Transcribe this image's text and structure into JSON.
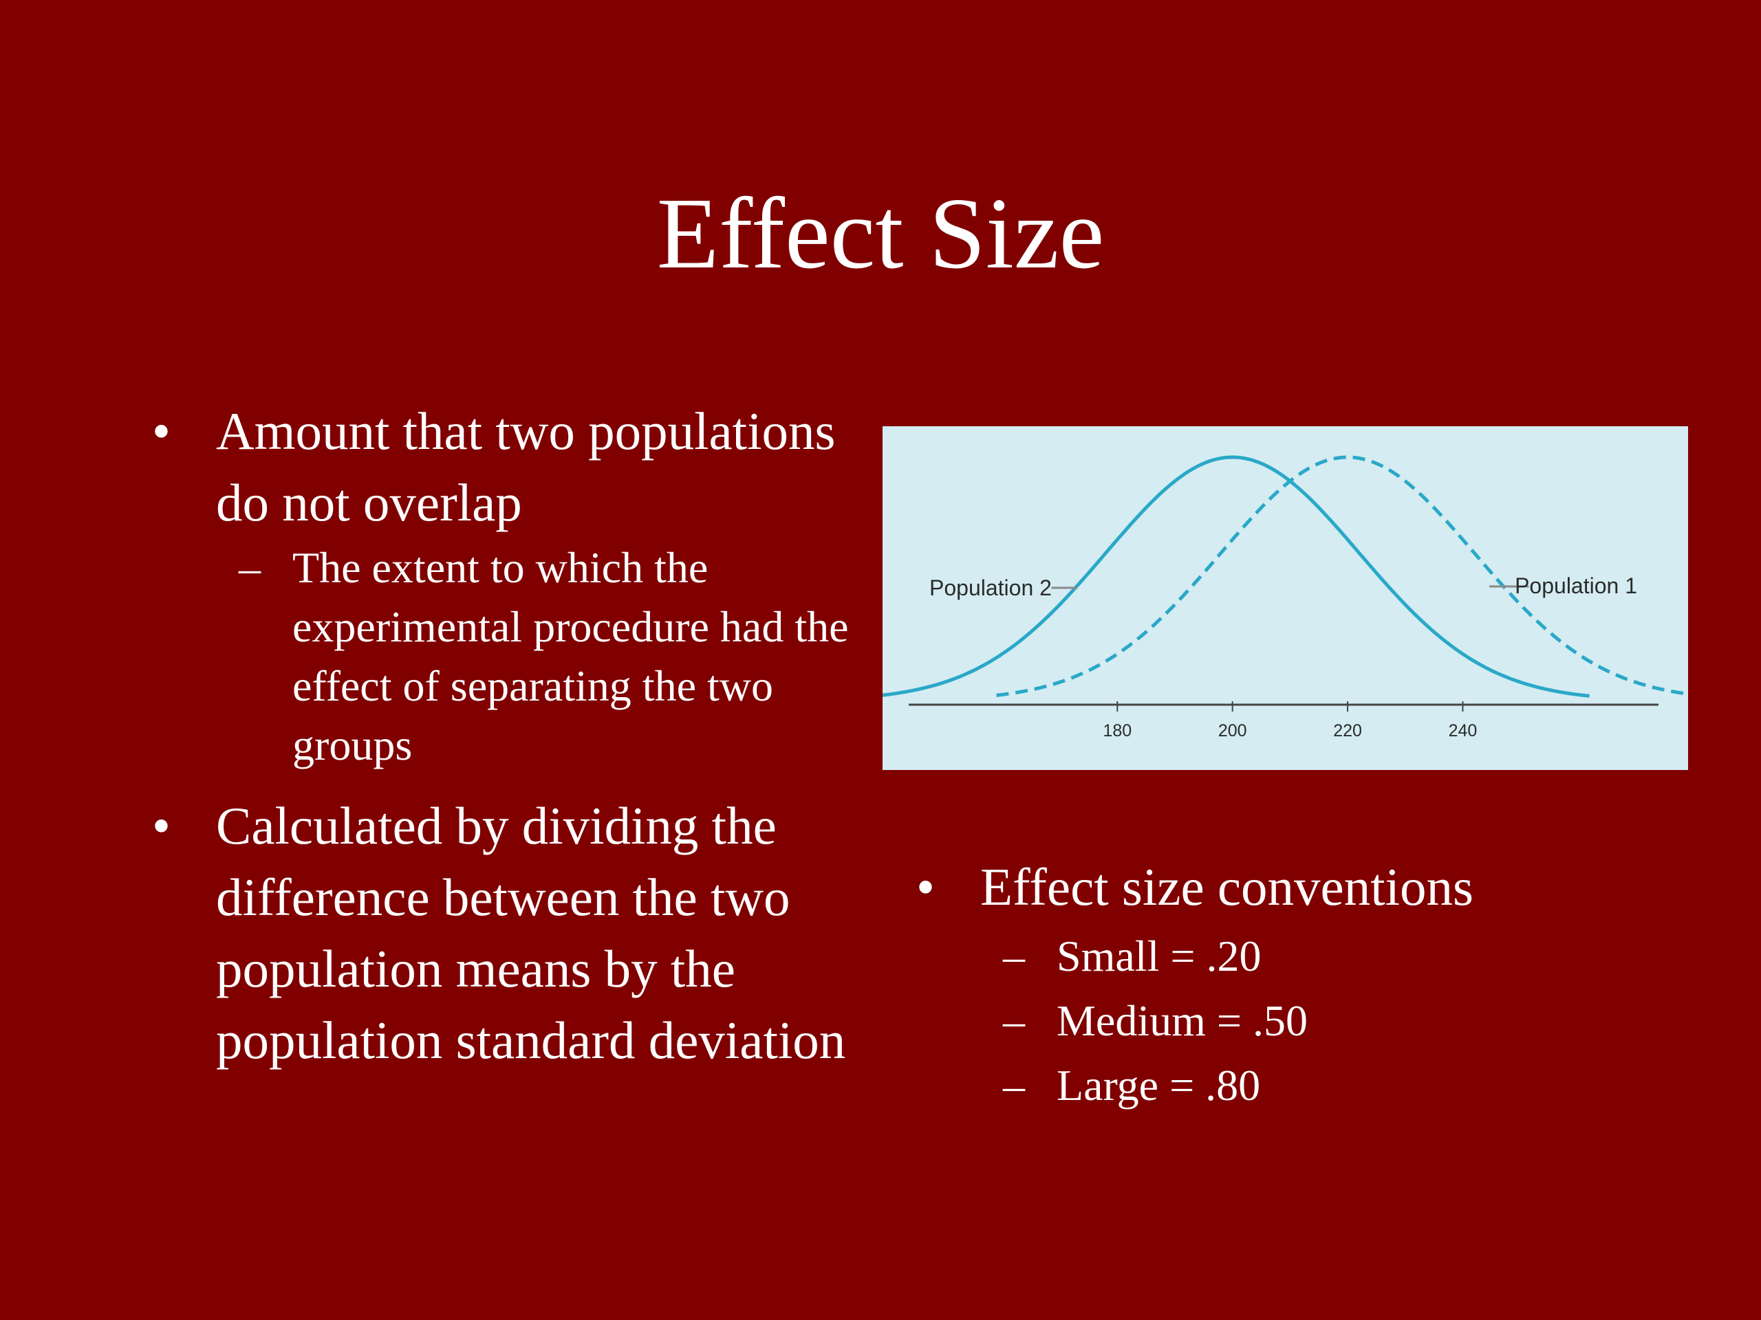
{
  "slide": {
    "title": "Effect Size",
    "background_color": "#800000",
    "text_color": "#ffffff"
  },
  "left_list": {
    "bullet_glyph": "•",
    "dash_glyph": "–",
    "items": [
      {
        "text": "Amount that two populations do not overlap",
        "sub_items": [
          "The extent to which the experimental procedure had the effect of separating the two groups"
        ]
      },
      {
        "text": "Calculated by dividing the difference between the two population means by the population standard deviation",
        "sub_items": []
      }
    ]
  },
  "right_list": {
    "items": [
      {
        "text": "Effect size conventions",
        "sub_items": [
          "Small = .20",
          "Medium = .50",
          "Large = .80"
        ]
      }
    ]
  },
  "chart_data": {
    "type": "line",
    "background_color": "#d4ecf2",
    "curve_color": "#2aa8c8",
    "axis_color": "#444444",
    "x_ticks": [
      180,
      200,
      220,
      240
    ],
    "xlim": [
      144,
      274
    ],
    "grid": false,
    "series": [
      {
        "name": "Population 2",
        "mean": 200,
        "sd": 22,
        "style": "solid",
        "x_range": [
          139,
          262
        ]
      },
      {
        "name": "Population 1",
        "mean": 220,
        "sd": 22,
        "style": "dashed",
        "x_range": [
          159,
          282
        ]
      }
    ]
  }
}
